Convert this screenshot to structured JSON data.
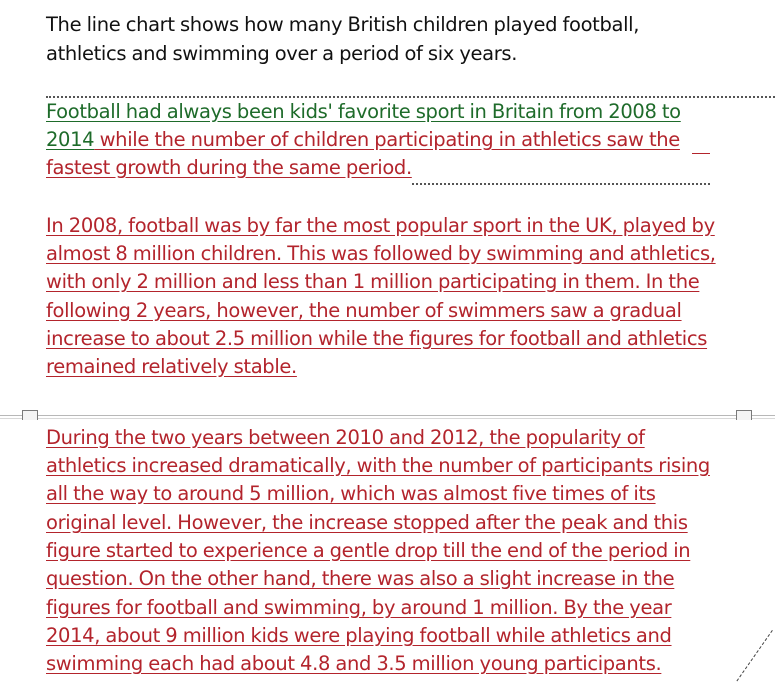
{
  "document": {
    "intro": [
      "The line chart shows how many British children played football,",
      "athletics and swimming over a period of six years."
    ],
    "overview": {
      "line1": "Football had always been kids' favorite sport in Britain from 2008 to",
      "line2_green": "2014",
      "line2_red": " while the number of children participating in athletics saw the",
      "line3": "fastest growth during the same period."
    },
    "paragraph1": [
      "In 2008, football was by far the most popular sport in the UK, played by",
      "almost 8 million children. This was followed by swimming and athletics,",
      "with only 2 million and less than 1 million participating in them. In the",
      "following 2 years, however, the number of swimmers saw a gradual",
      "increase to about 2.5 million while the figures for football and athletics",
      "remained relatively stable."
    ],
    "paragraph2": [
      "During the two years between 2010 and 2012, the popularity of",
      "athletics increased dramatically, with the number of participants rising",
      "all the way to around 5 million, which was almost five times of its",
      "original level. However, the increase stopped after the peak and this",
      "figure started to experience a gentle drop till the end of the period in",
      "question. On the other hand, there was also a slight increase in the",
      "figures for football and swimming, by around 1 million. By the year",
      "2014, about 9 million kids were playing football while athletics and",
      "swimming each had about 4.8 and 3.5 million young participants."
    ]
  },
  "colors": {
    "text": "#111111",
    "tracked_green": "#1e6b2a",
    "tracked_red": "#b3242c",
    "page_break": "#b8b8b8"
  }
}
